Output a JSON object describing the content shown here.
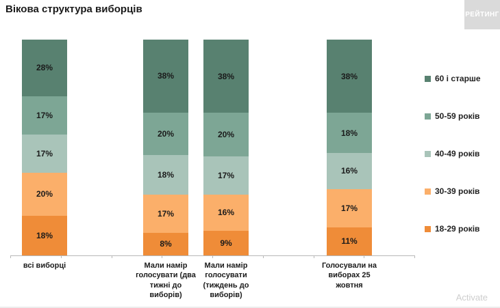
{
  "title": "Вікова структура виборців",
  "logo": {
    "text": "РЕЙТИНГ"
  },
  "watermark": "Activate",
  "colors": {
    "axis": "#b7b7b7",
    "age_60_plus": "#588170",
    "age_50_59": "#7da695",
    "age_40_49": "#a9c4b9",
    "age_30_39": "#fbaf6a",
    "age_18_29": "#ef8c38"
  },
  "chart_data": {
    "type": "bar",
    "stacked": true,
    "orientation": "vertical",
    "title": "Вікова структура виборців",
    "value_suffix": "%",
    "legend_position": "right",
    "grid": false,
    "ylim": [
      0,
      100
    ],
    "categories": [
      "всі виборці",
      "Мали намір голосувати (два тижні до виборів)",
      "Мали намір голосувати (тиждень до виборів)",
      "Голосували на виборах 25 жовтня"
    ],
    "label_lines": [
      [
        "всі виборці"
      ],
      [
        "Мали намір",
        "голосувати (два",
        "тижні до",
        "виборів)"
      ],
      [
        "Мали намір",
        "голосувати",
        "(тиждень до",
        "виборів)"
      ],
      [
        "Голосували на",
        "виборах 25",
        "жовтня"
      ]
    ],
    "series": [
      {
        "name": "60 і старше",
        "color": "#588170",
        "values": [
          28,
          38,
          38,
          38
        ]
      },
      {
        "name": "50-59 років",
        "color": "#7da695",
        "values": [
          17,
          20,
          20,
          18
        ]
      },
      {
        "name": "40-49 років",
        "color": "#a9c4b9",
        "values": [
          17,
          18,
          17,
          16
        ]
      },
      {
        "name": "30-39 років",
        "color": "#fbaf6a",
        "values": [
          20,
          17,
          16,
          17
        ]
      },
      {
        "name": "18-29 років",
        "color": "#ef8c38",
        "values": [
          18,
          8,
          9,
          11
        ]
      }
    ]
  }
}
